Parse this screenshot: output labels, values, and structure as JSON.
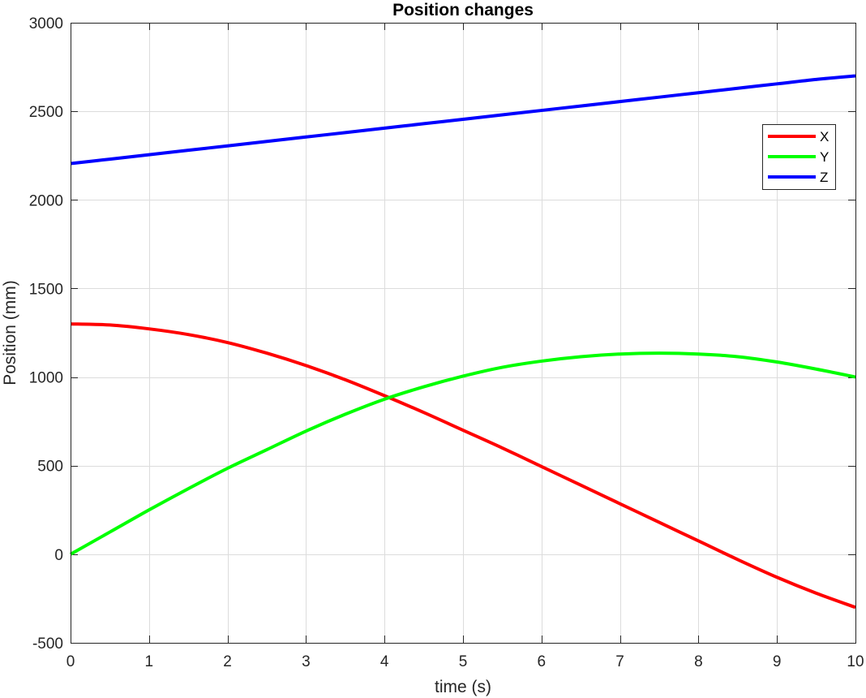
{
  "chart_data": {
    "type": "line",
    "title": "Position changes",
    "xlabel": "time (s)",
    "ylabel": "Position (mm)",
    "xlim": [
      0,
      10
    ],
    "ylim": [
      -500,
      3000
    ],
    "xticks": [
      0,
      1,
      2,
      3,
      4,
      5,
      6,
      7,
      8,
      9,
      10
    ],
    "yticks": [
      -500,
      0,
      500,
      1000,
      1500,
      2000,
      2500,
      3000
    ],
    "grid": true,
    "legend_position": "top-right",
    "x": [
      0,
      0.5,
      1,
      1.5,
      2,
      2.5,
      3,
      3.5,
      4,
      4.5,
      5,
      5.5,
      6,
      6.5,
      7,
      7.5,
      8,
      8.5,
      9,
      9.5,
      10
    ],
    "series": [
      {
        "name": "X",
        "color": "#ff0000",
        "values": [
          1300,
          1294,
          1272,
          1240,
          1195,
          1135,
          1065,
          985,
          895,
          800,
          700,
          600,
          495,
          390,
          285,
          180,
          75,
          -30,
          -130,
          -220,
          -300
        ]
      },
      {
        "name": "Y",
        "color": "#00ff00",
        "values": [
          0,
          125,
          250,
          370,
          485,
          590,
          695,
          790,
          875,
          945,
          1005,
          1055,
          1090,
          1115,
          1130,
          1135,
          1130,
          1115,
          1085,
          1045,
          1000
        ]
      },
      {
        "name": "Z",
        "color": "#0000ff",
        "values": [
          2205,
          2230,
          2255,
          2280,
          2305,
          2330,
          2355,
          2380,
          2405,
          2430,
          2455,
          2480,
          2505,
          2530,
          2555,
          2580,
          2605,
          2630,
          2655,
          2680,
          2700
        ]
      }
    ]
  }
}
